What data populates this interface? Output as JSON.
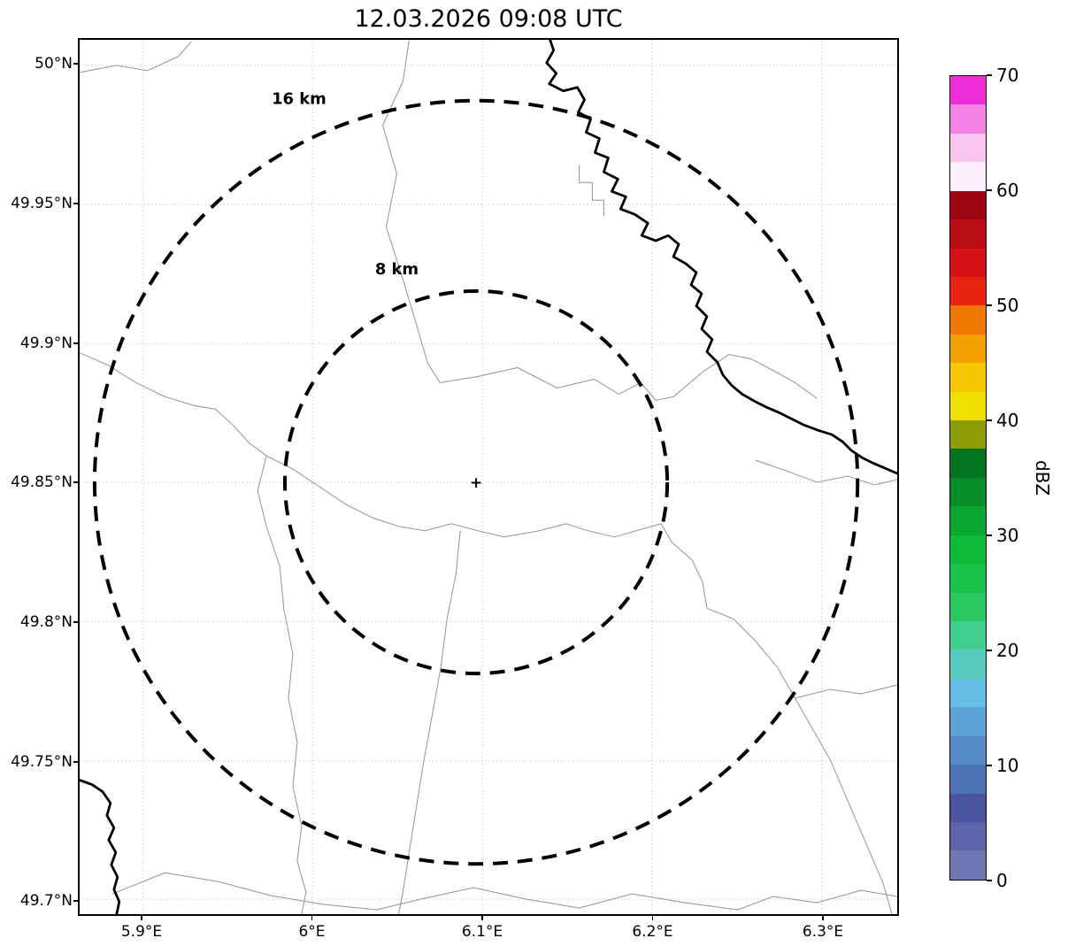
{
  "title": "12.03.2026 09:08 UTC",
  "map": {
    "x_ticks": [
      "5.9°E",
      "6°E",
      "6.1°E",
      "6.2°E",
      "6.3°E"
    ],
    "y_ticks": [
      "50°N",
      "49.95°N",
      "49.9°N",
      "49.85°N",
      "49.8°N",
      "49.75°N",
      "49.7°N"
    ],
    "range_rings": [
      {
        "label": "16 km",
        "radius_km": 16
      },
      {
        "label": "8 km",
        "radius_km": 8
      }
    ],
    "center_marker_symbol": "+",
    "line_colors": {
      "grid": "#c9c9c9",
      "boundaries": "#9b9b9b",
      "country_border": "#000000",
      "range_rings": "#000000"
    }
  },
  "colorbar": {
    "label": "dBZ",
    "tick_labels": [
      "70",
      "60",
      "50",
      "40",
      "30",
      "20",
      "10",
      "0"
    ],
    "min": 0,
    "max": 70,
    "step_dbz": 2.5,
    "colors_bottom_to_top": [
      "#6f77b5",
      "#5d64ab",
      "#4c53a0",
      "#4f73b8",
      "#548bc8",
      "#5aa4d8",
      "#65bfe4",
      "#55cabc",
      "#41cd8d",
      "#2cc963",
      "#19c248",
      "#0dbb38",
      "#09a630",
      "#068d28",
      "#037420",
      "#8c9c05",
      "#f0e000",
      "#f6c600",
      "#f4a000",
      "#f07800",
      "#e92511",
      "#d61219",
      "#bb0d15",
      "#9e0711",
      "#fdeefb",
      "#f9c6f0",
      "#f383e4",
      "#ee2ed8"
    ]
  }
}
